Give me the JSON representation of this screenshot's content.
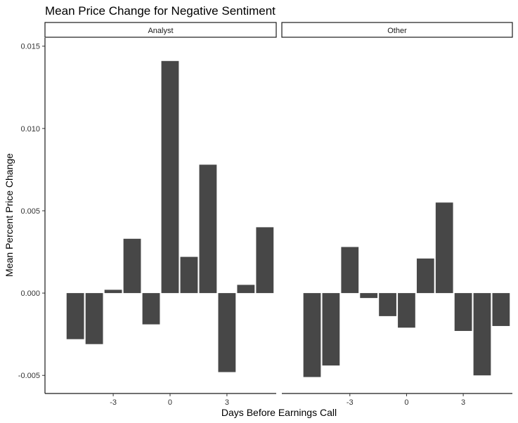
{
  "chart_data": {
    "type": "bar",
    "title": "Mean Price Change for Negative Sentiment",
    "xlabel": "Days Before Earnings Call",
    "ylabel": "Mean Percent Price Change",
    "ylim": [
      -0.0061,
      0.0155
    ],
    "xlim": [
      -6.6,
      5.6
    ],
    "yticks": [
      -0.005,
      0.0,
      0.005,
      0.01,
      0.015
    ],
    "ytick_labels": [
      "-0.005",
      "0.000",
      "0.005",
      "0.010",
      "0.015"
    ],
    "xticks": [
      -3,
      0,
      3
    ],
    "xtick_labels": [
      "-3",
      "0",
      "3"
    ],
    "bar_color": "#474747",
    "grid": false,
    "panels": [
      {
        "name": "Analyst",
        "x": [
          -5,
          -4,
          -3,
          -2,
          -1,
          0,
          1,
          2,
          3,
          4,
          5
        ],
        "values": [
          -0.0028,
          -0.0031,
          0.0002,
          0.0033,
          -0.0019,
          0.0141,
          0.0022,
          0.0078,
          -0.0048,
          0.0005,
          0.004
        ]
      },
      {
        "name": "Other",
        "x": [
          -5,
          -4,
          -3,
          -2,
          -1,
          0,
          1,
          2,
          3,
          4,
          5
        ],
        "values": [
          -0.0051,
          -0.0044,
          0.0028,
          -0.0003,
          -0.0014,
          -0.0021,
          0.0021,
          0.0055,
          -0.0023,
          -0.005,
          -0.002
        ]
      }
    ]
  }
}
